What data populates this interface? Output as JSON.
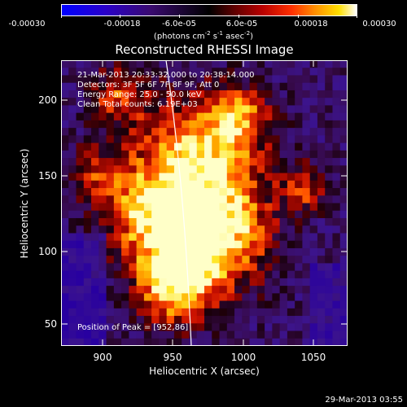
{
  "colorbar": {
    "ticks": [
      "-0.00030",
      "-0.00018",
      "-6.0e-05",
      "6.0e-05",
      "0.00018",
      "0.00030"
    ],
    "units_parts": [
      "(photons cm",
      "-2",
      " s",
      "-1",
      " asec",
      "-2",
      ")"
    ]
  },
  "title": "Reconstructed RHESSI Image",
  "info": {
    "time_range": "21-Mar-2013 20:33:32.000 to 20:38:14.000",
    "detectors": "Detectors: 3F 5F 6F 7F 8F 9F, Att 0",
    "energy_range": "Energy Range: 25.0 - 50.0 keV",
    "method_counts": "Clean    Total counts: 6.19E+03",
    "peak_position": "Position of Peak = [952,86]"
  },
  "axes": {
    "x_title": "Heliocentric X (arcsec)",
    "y_title": "Heliocentric Y (arcsec)",
    "x_ticks": [
      "900",
      "950",
      "1000",
      "1050"
    ],
    "y_ticks": [
      "200",
      "150",
      "100",
      "50"
    ]
  },
  "footer": {
    "date": "29-Mar-2013 03:55"
  },
  "colors": {
    "background": "#000000",
    "limb_line": "#ffffff"
  }
}
